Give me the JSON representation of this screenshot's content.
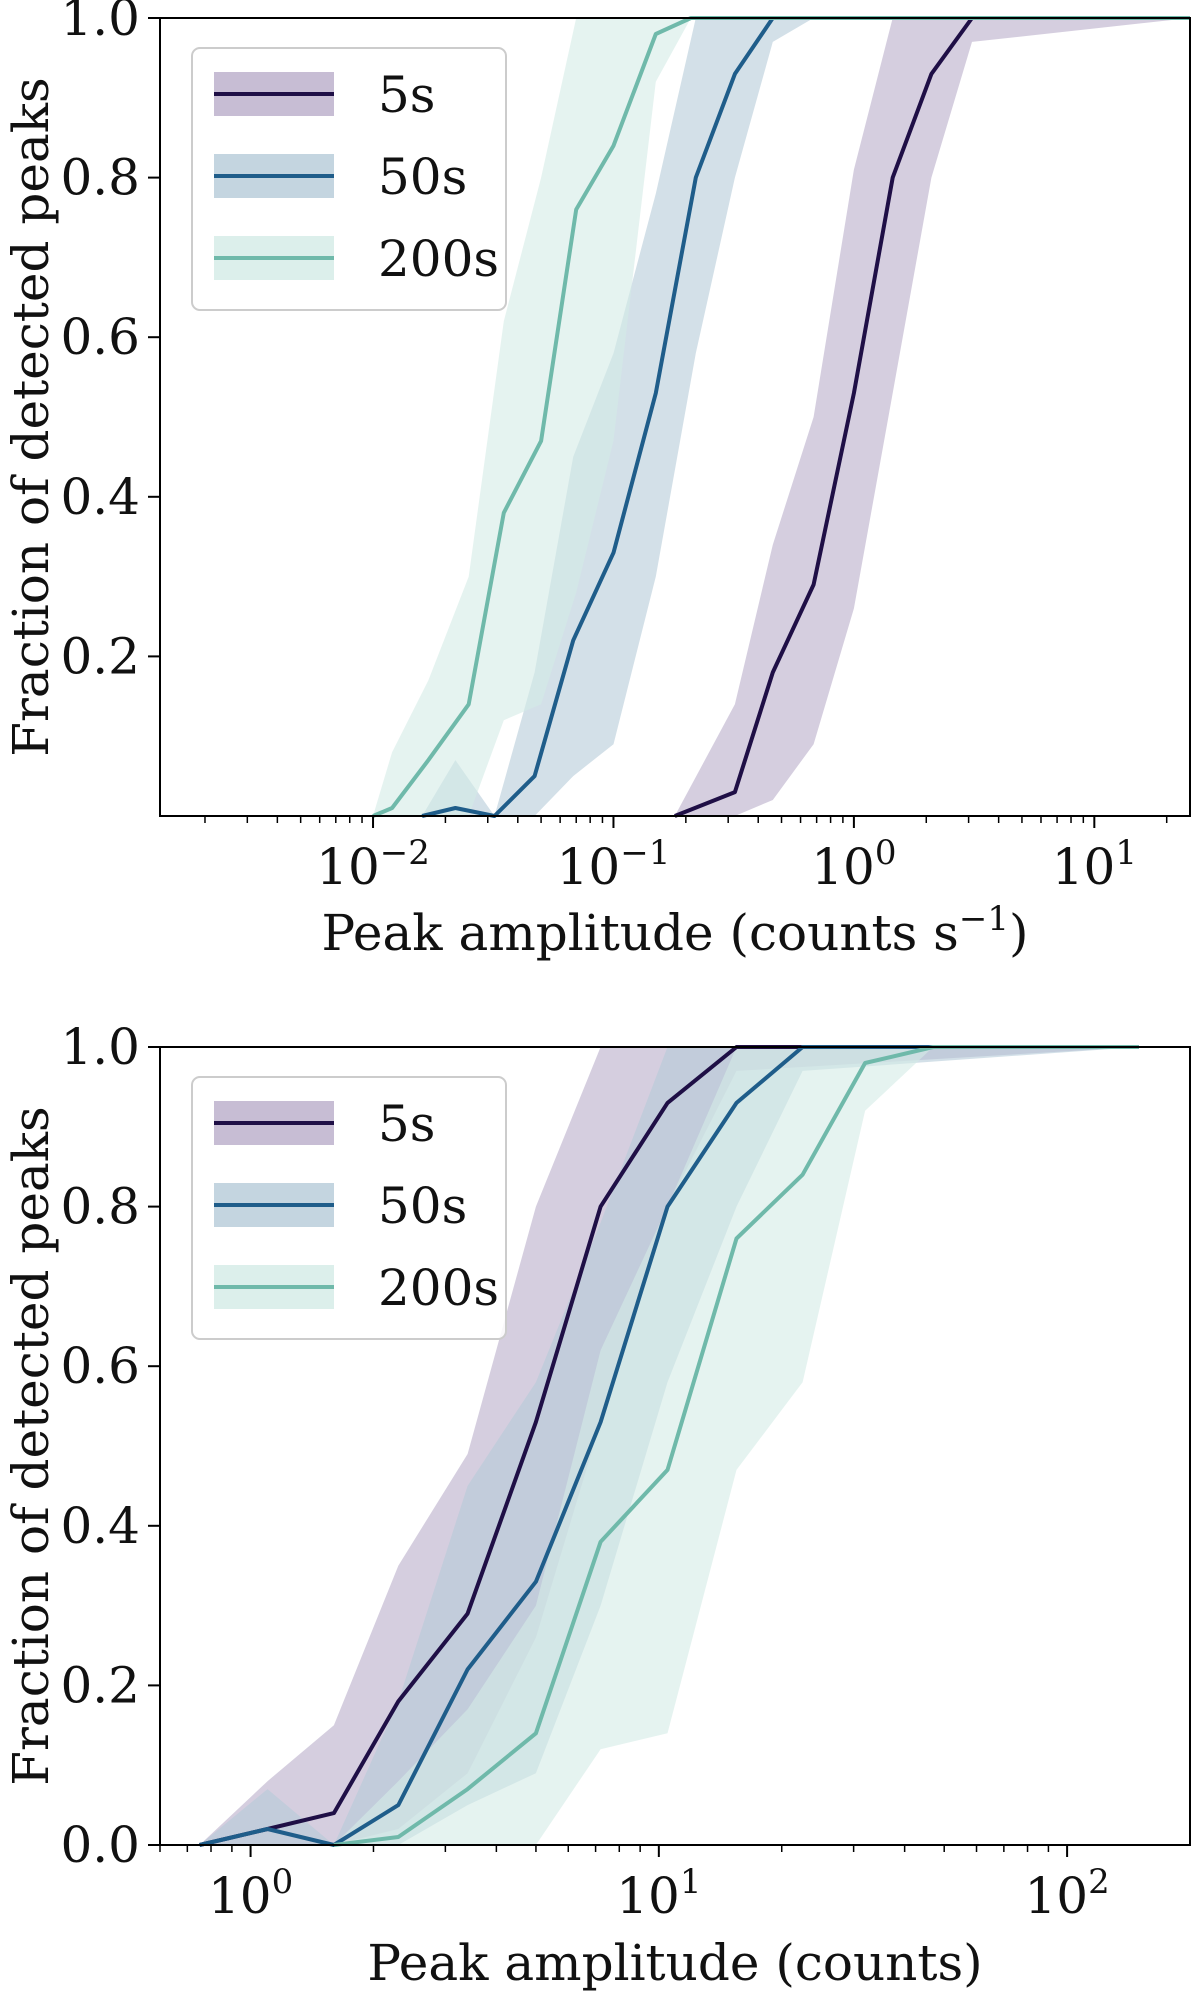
{
  "chart_data": [
    {
      "type": "line",
      "id": "top",
      "title": "",
      "xlabel": "Peak amplitude (counts s",
      "xlabel_sup": "−1",
      "xlabel_close": ")",
      "ylabel": "Fraction of detected peaks",
      "xscale": "log",
      "xlim": [
        0.0013,
        25
      ],
      "ylim": [
        0.0,
        1.0
      ],
      "xticks": [
        {
          "value": 0.01,
          "base": "10",
          "exp": "−2"
        },
        {
          "value": 0.1,
          "base": "10",
          "exp": "−1"
        },
        {
          "value": 1,
          "base": "10",
          "exp": "0"
        },
        {
          "value": 10,
          "base": "10",
          "exp": "1"
        }
      ],
      "yticks": [
        {
          "value": 0.2,
          "label": "0.2"
        },
        {
          "value": 0.4,
          "label": "0.4"
        },
        {
          "value": 0.6,
          "label": "0.6"
        },
        {
          "value": 0.8,
          "label": "0.8"
        },
        {
          "value": 1.0,
          "label": "1.0"
        }
      ],
      "legend": {
        "position": "upper-left"
      },
      "series": [
        {
          "name": "5s",
          "color": "#1f0f46",
          "band_color": "#b9adc9",
          "x": [
            0.18,
            0.32,
            0.46,
            0.68,
            1.0,
            1.45,
            2.1,
            3.1,
            25
          ],
          "y": [
            0.0,
            0.03,
            0.18,
            0.29,
            0.53,
            0.8,
            0.93,
            1.0,
            1.0
          ],
          "lower": [
            0.0,
            0.0,
            0.02,
            0.09,
            0.26,
            0.53,
            0.8,
            0.97,
            1.0
          ],
          "upper": [
            0.0,
            0.14,
            0.34,
            0.5,
            0.81,
            1.0,
            1.0,
            1.0,
            1.0
          ]
        },
        {
          "name": "50s",
          "color": "#1f5d8a",
          "band_color": "#b5cbd8",
          "x": [
            0.016,
            0.022,
            0.032,
            0.047,
            0.068,
            0.1,
            0.15,
            0.22,
            0.32,
            0.46,
            0.68,
            25
          ],
          "y": [
            0.0,
            0.01,
            0.0,
            0.05,
            0.22,
            0.33,
            0.53,
            0.8,
            0.93,
            1.0,
            1.0,
            1.0
          ],
          "lower": [
            0.0,
            0.0,
            0.0,
            0.0,
            0.05,
            0.09,
            0.3,
            0.58,
            0.8,
            0.97,
            1.0,
            1.0
          ],
          "upper": [
            0.0,
            0.07,
            0.0,
            0.18,
            0.45,
            0.58,
            0.78,
            1.0,
            1.0,
            1.0,
            1.0,
            1.0
          ]
        },
        {
          "name": "200s",
          "color": "#6fb9aa",
          "band_color": "#d3ebe6",
          "x": [
            0.01,
            0.012,
            0.017,
            0.025,
            0.035,
            0.05,
            0.07,
            0.1,
            0.15,
            0.21,
            0.3,
            25
          ],
          "y": [
            0.0,
            0.01,
            0.07,
            0.14,
            0.38,
            0.47,
            0.76,
            0.84,
            0.98,
            1.0,
            1.0,
            1.0
          ],
          "lower": [
            0.0,
            0.0,
            0.0,
            0.0,
            0.12,
            0.14,
            0.28,
            0.47,
            0.92,
            1.0,
            1.0,
            1.0
          ],
          "upper": [
            0.0,
            0.08,
            0.17,
            0.3,
            0.62,
            0.8,
            1.0,
            1.0,
            1.0,
            1.0,
            1.0,
            1.0
          ]
        }
      ]
    },
    {
      "type": "line",
      "id": "bottom",
      "title": "",
      "xlabel": "Peak amplitude (counts)",
      "xlabel_sup": "",
      "xlabel_close": "",
      "ylabel": "Fraction of detected peaks",
      "xscale": "log",
      "xlim": [
        0.6,
        200
      ],
      "ylim": [
        0.0,
        1.0
      ],
      "xticks": [
        {
          "value": 1,
          "base": "10",
          "exp": "0"
        },
        {
          "value": 10,
          "base": "10",
          "exp": "1"
        },
        {
          "value": 100,
          "base": "10",
          "exp": "2"
        }
      ],
      "yticks": [
        {
          "value": 0.0,
          "label": "0.0"
        },
        {
          "value": 0.2,
          "label": "0.2"
        },
        {
          "value": 0.4,
          "label": "0.4"
        },
        {
          "value": 0.6,
          "label": "0.6"
        },
        {
          "value": 0.8,
          "label": "0.8"
        },
        {
          "value": 1.0,
          "label": "1.0"
        }
      ],
      "legend": {
        "position": "upper-left"
      },
      "series": [
        {
          "name": "5s",
          "color": "#1f0f46",
          "band_color": "#b9adc9",
          "x": [
            0.75,
            1.1,
            1.6,
            2.3,
            3.4,
            5.0,
            7.2,
            10.5,
            15.5,
            150
          ],
          "y": [
            0.0,
            0.02,
            0.04,
            0.18,
            0.29,
            0.53,
            0.8,
            0.93,
            1.0,
            1.0
          ],
          "lower": [
            0.0,
            0.0,
            0.0,
            0.02,
            0.09,
            0.26,
            0.53,
            0.8,
            0.97,
            1.0
          ],
          "upper": [
            0.0,
            0.08,
            0.15,
            0.35,
            0.49,
            0.8,
            1.0,
            1.0,
            1.0,
            1.0
          ]
        },
        {
          "name": "50s",
          "color": "#1f5d8a",
          "band_color": "#b5cbd8",
          "x": [
            0.75,
            1.1,
            1.6,
            2.3,
            3.4,
            5.0,
            7.2,
            10.5,
            15.5,
            22.5,
            150
          ],
          "y": [
            0.0,
            0.02,
            0.0,
            0.05,
            0.22,
            0.33,
            0.53,
            0.8,
            0.93,
            1.0,
            1.0
          ],
          "lower": [
            0.0,
            0.0,
            0.0,
            0.0,
            0.05,
            0.09,
            0.3,
            0.58,
            0.8,
            0.97,
            1.0
          ],
          "upper": [
            0.0,
            0.07,
            0.0,
            0.18,
            0.45,
            0.58,
            0.78,
            1.0,
            1.0,
            1.0,
            1.0
          ]
        },
        {
          "name": "200s",
          "color": "#6fb9aa",
          "band_color": "#d3ebe6",
          "x": [
            1.6,
            2.3,
            3.4,
            5.0,
            7.2,
            10.5,
            15.5,
            22.5,
            32,
            47,
            150
          ],
          "y": [
            0.0,
            0.01,
            0.07,
            0.14,
            0.38,
            0.47,
            0.76,
            0.84,
            0.98,
            1.0,
            1.0
          ],
          "lower": [
            0.0,
            0.0,
            0.0,
            0.0,
            0.12,
            0.14,
            0.47,
            0.58,
            0.92,
            1.0,
            1.0
          ],
          "upper": [
            0.0,
            0.08,
            0.17,
            0.3,
            0.62,
            0.8,
            1.0,
            1.0,
            1.0,
            1.0,
            1.0
          ]
        }
      ]
    }
  ]
}
